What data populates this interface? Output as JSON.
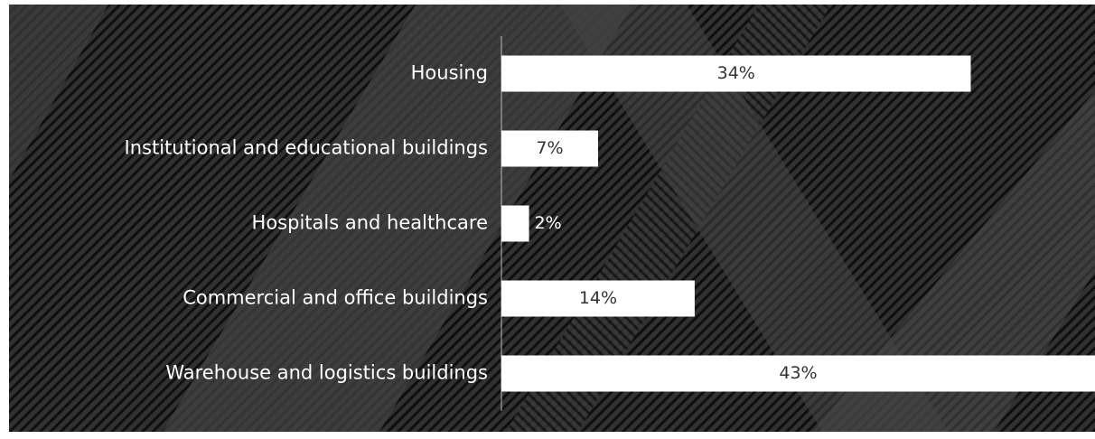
{
  "chart_data": {
    "type": "hbar",
    "categories": [
      "Housing",
      "Institutional and educational buildings",
      "Hospitals and healthcare",
      "Commercial and office buildings",
      "Warehouse and logistics buildings"
    ],
    "values": [
      34,
      7,
      2,
      14,
      43
    ],
    "value_labels": [
      "34%",
      "7%",
      "2%",
      "14%",
      "43%"
    ],
    "color": "#ffffff",
    "xlim": [
      0,
      43
    ]
  }
}
